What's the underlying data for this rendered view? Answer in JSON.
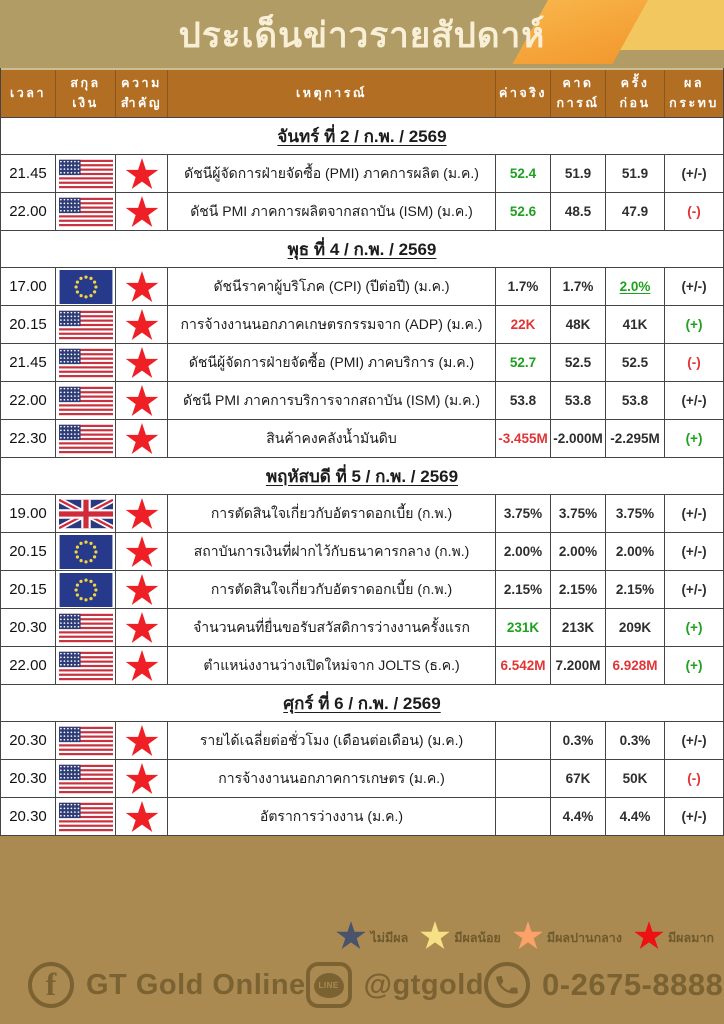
{
  "title": "ประเด็นข่าวรายสัปดาห์",
  "colors": {
    "band_tan": "#b19c66",
    "footer_tan": "#ab8a52",
    "header_brown": "#b26f24",
    "green": "#1ea11e",
    "red": "#e23434",
    "star_high": "#ee2026"
  },
  "table": {
    "headers": [
      "เวลา",
      "สกุล\nเงิน",
      "ความ\nสำคัญ",
      "เหตุการณ์",
      "ค่าจริง",
      "คาด\nการณ์",
      "ครั้ง\nก่อน",
      "ผล\nกระทบ"
    ],
    "header_keys": [
      "time",
      "currency",
      "importance",
      "event",
      "actual",
      "forecast",
      "previous",
      "impact"
    ]
  },
  "sections": [
    {
      "day_title": "จันทร์ ที่ 2 / ก.พ. / 2569",
      "rows": [
        {
          "time": "21.45",
          "flag": "us",
          "event": "ดัชนีผู้จัดการฝ่ายจัดซื้อ (PMI) ภาคการผลิต  (ม.ค.)",
          "actual": {
            "text": "52.4",
            "style": "g"
          },
          "forecast": {
            "text": "51.9",
            "style": "k"
          },
          "previous": {
            "text": "51.9",
            "style": "k"
          },
          "impact": {
            "text": "(+/-)",
            "style": "k"
          }
        },
        {
          "time": "22.00",
          "flag": "us",
          "event": "ดัชนี PMI ภาคการผลิตจากสถาบัน (ISM)  (ม.ค.)",
          "actual": {
            "text": "52.6",
            "style": "g"
          },
          "forecast": {
            "text": "48.5",
            "style": "k"
          },
          "previous": {
            "text": "47.9",
            "style": "k"
          },
          "impact": {
            "text": "(-)",
            "style": "r"
          }
        }
      ]
    },
    {
      "day_title": "พุธ ที่ 4 / ก.พ. / 2569",
      "rows": [
        {
          "time": "17.00",
          "flag": "eu",
          "event": "ดัชนีราคาผู้บริโภค (CPI) (ปีต่อปี) (ม.ค.)",
          "actual": {
            "text": "1.7%",
            "style": "k"
          },
          "forecast": {
            "text": "1.7%",
            "style": "k"
          },
          "previous": {
            "text": "2.0%",
            "style": "gu"
          },
          "impact": {
            "text": "(+/-)",
            "style": "k"
          }
        },
        {
          "time": "20.15",
          "flag": "us",
          "event": "การจ้างงานนอกภาคเกษตรกรรมจาก (ADP)  (ม.ค.)",
          "actual": {
            "text": "22K",
            "style": "r"
          },
          "forecast": {
            "text": "48K",
            "style": "k"
          },
          "previous": {
            "text": "41K",
            "style": "k"
          },
          "impact": {
            "text": "(+)",
            "style": "g"
          }
        },
        {
          "time": "21.45",
          "flag": "us",
          "event": "ดัชนีผู้จัดการฝ่ายจัดซื้อ (PMI) ภาคบริการ  (ม.ค.)",
          "actual": {
            "text": "52.7",
            "style": "g"
          },
          "forecast": {
            "text": "52.5",
            "style": "k"
          },
          "previous": {
            "text": "52.5",
            "style": "k"
          },
          "impact": {
            "text": "(-)",
            "style": "r"
          }
        },
        {
          "time": "22.00",
          "flag": "us",
          "event": "ดัชนี PMI ภาคการบริการจากสถาบัน (ISM)  (ม.ค.)",
          "actual": {
            "text": "53.8",
            "style": "k"
          },
          "forecast": {
            "text": "53.8",
            "style": "k"
          },
          "previous": {
            "text": "53.8",
            "style": "k"
          },
          "impact": {
            "text": "(+/-)",
            "style": "k"
          }
        },
        {
          "time": "22.30",
          "flag": "us",
          "event": "สินค้าคงคลังน้ำมันดิบ",
          "actual": {
            "text": "-3.455M",
            "style": "r"
          },
          "forecast": {
            "text": "-2.000M",
            "style": "k"
          },
          "previous": {
            "text": "-2.295M",
            "style": "k"
          },
          "impact": {
            "text": "(+)",
            "style": "g"
          }
        }
      ]
    },
    {
      "day_title": "พฤหัสบดี ที่ 5 / ก.พ. / 2569",
      "rows": [
        {
          "time": "19.00",
          "flag": "uk",
          "event": "การตัดสินใจเกี่ยวกับอัตราดอกเบี้ย  (ก.พ.)",
          "actual": {
            "text": "3.75%",
            "style": "k"
          },
          "forecast": {
            "text": "3.75%",
            "style": "k"
          },
          "previous": {
            "text": "3.75%",
            "style": "k"
          },
          "impact": {
            "text": "(+/-)",
            "style": "k"
          }
        },
        {
          "time": "20.15",
          "flag": "eu",
          "event": "สถาบันการเงินที่ฝากไว้กับธนาคารกลาง  (ก.พ.)",
          "actual": {
            "text": "2.00%",
            "style": "k"
          },
          "forecast": {
            "text": "2.00%",
            "style": "k"
          },
          "previous": {
            "text": "2.00%",
            "style": "k"
          },
          "impact": {
            "text": "(+/-)",
            "style": "k"
          }
        },
        {
          "time": "20.15",
          "flag": "eu",
          "event": "การตัดสินใจเกี่ยวกับอัตราดอกเบี้ย  (ก.พ.)",
          "actual": {
            "text": "2.15%",
            "style": "k"
          },
          "forecast": {
            "text": "2.15%",
            "style": "k"
          },
          "previous": {
            "text": "2.15%",
            "style": "k"
          },
          "impact": {
            "text": "(+/-)",
            "style": "k"
          }
        },
        {
          "time": "20.30",
          "flag": "us",
          "event": "จำนวนคนที่ยื่นขอรับสวัสดิการว่างงานครั้งแรก",
          "actual": {
            "text": "231K",
            "style": "g"
          },
          "forecast": {
            "text": "213K",
            "style": "k"
          },
          "previous": {
            "text": "209K",
            "style": "k"
          },
          "impact": {
            "text": "(+)",
            "style": "g"
          }
        },
        {
          "time": "22.00",
          "flag": "us",
          "event": "ตำแหน่งงานว่างเปิดใหม่จาก JOLTS  (ธ.ค.)",
          "actual": {
            "text": "6.542M",
            "style": "r"
          },
          "forecast": {
            "text": "7.200M",
            "style": "k"
          },
          "previous": {
            "text": "6.928M",
            "style": "r"
          },
          "impact": {
            "text": "(+)",
            "style": "g"
          }
        }
      ]
    },
    {
      "day_title": "ศุกร์ ที่ 6 / ก.พ. / 2569",
      "rows": [
        {
          "time": "20.30",
          "flag": "us",
          "event": "รายได้เฉลี่ยต่อชั่วโมง (เดือนต่อเดือน) (ม.ค.)",
          "actual": {
            "text": "",
            "style": "k"
          },
          "forecast": {
            "text": "0.3%",
            "style": "k"
          },
          "previous": {
            "text": "0.3%",
            "style": "k"
          },
          "impact": {
            "text": "(+/-)",
            "style": "k"
          }
        },
        {
          "time": "20.30",
          "flag": "us",
          "event": "การจ้างงานนอกภาคการเกษตร  (ม.ค.)",
          "actual": {
            "text": "",
            "style": "k"
          },
          "forecast": {
            "text": "67K",
            "style": "k"
          },
          "previous": {
            "text": "50K",
            "style": "k"
          },
          "impact": {
            "text": "(-)",
            "style": "r"
          }
        },
        {
          "time": "20.30",
          "flag": "us",
          "event": "อัตราการว่างงาน  (ม.ค.)",
          "actual": {
            "text": "",
            "style": "k"
          },
          "forecast": {
            "text": "4.4%",
            "style": "k"
          },
          "previous": {
            "text": "4.4%",
            "style": "k"
          },
          "impact": {
            "text": "(+/-)",
            "style": "k"
          }
        }
      ]
    }
  ],
  "legend": [
    {
      "key": "none",
      "label": "ไม่มีผล",
      "color": "#49536b"
    },
    {
      "key": "low",
      "label": "มีผลน้อย",
      "color": "#f7df85"
    },
    {
      "key": "medium",
      "label": "มีผลปานกลาง",
      "color": "#fba26b"
    },
    {
      "key": "high",
      "label": "มีผลมาก",
      "color": "#ee1111"
    }
  ],
  "footer": {
    "facebook_label": "GT Gold Online",
    "line_label": "@gtgold",
    "line_icon_text": "LINE",
    "facebook_glyph": "f",
    "phone_label": "0-2675-8888"
  }
}
